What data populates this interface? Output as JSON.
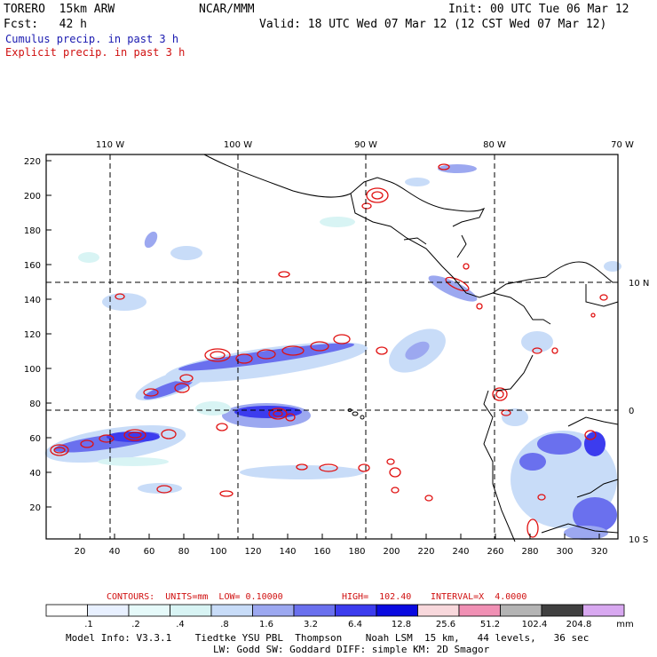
{
  "header": {
    "model": "TORERO  15km ARW",
    "org": "NCAR/MMM",
    "init": "Init: 00 UTC Tue 06 Mar 12",
    "fcst": "Fcst:   42 h",
    "valid": "Valid: 18 UTC Wed 07 Mar 12 (12 CST Wed 07 Mar 12)",
    "field1": "Cumulus precip. in past 3 h",
    "field2": "Explicit precip. in past 3 h"
  },
  "colors": {
    "cumulus_title": "#1a1ab0",
    "explicit_title": "#d01010",
    "contour": "#e01010"
  },
  "axes": {
    "lon_labels": [
      "110 W",
      "100 W",
      "90 W",
      "80 W",
      "70 W"
    ],
    "lat_labels": [
      "10 N",
      "0",
      "10 S"
    ],
    "y_ticks": [
      "220",
      "200",
      "180",
      "160",
      "140",
      "120",
      "100",
      "80",
      "60",
      "40",
      "20"
    ],
    "x_ticks": [
      "20",
      "40",
      "60",
      "80",
      "100",
      "120",
      "140",
      "160",
      "180",
      "200",
      "220",
      "240",
      "260",
      "280",
      "300",
      "320"
    ]
  },
  "contours": {
    "label": "CONTOURS:  UNITS=mm  LOW= 0.10000",
    "high": "HIGH=  102.40",
    "interval": "INTERVAL=X  4.0000"
  },
  "colorbar": {
    "labels": [
      ".1",
      ".2",
      ".4",
      ".8",
      "1.6",
      "3.2",
      "6.4",
      "12.8",
      "25.6",
      "51.2",
      "102.4",
      "204.8"
    ],
    "units": "mm",
    "colors": [
      "#ffffff",
      "#e8f0ff",
      "#e6fafa",
      "#d8f4f4",
      "#c8dcf8",
      "#9ca8f0",
      "#6a70ee",
      "#3c3cee",
      "#0a0ae0",
      "#f8d8dc",
      "#f090b4",
      "#b4b4b4",
      "#404040",
      "#d8a8f0"
    ]
  },
  "info": {
    "line1": "Model Info: V3.3.1    Tiedtke YSU PBL  Thompson    Noah LSM  15 km,   44 levels,   36 sec",
    "line2": "LW: Godd SW: Goddard DIFF: simple KM: 2D Smagor"
  }
}
